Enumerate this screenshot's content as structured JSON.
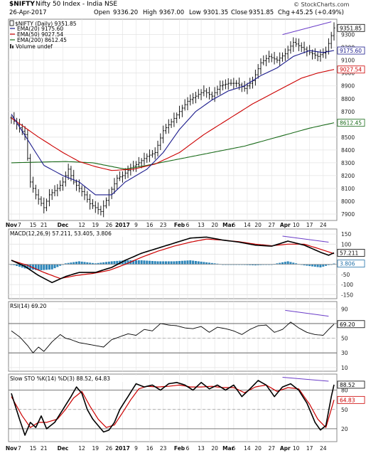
{
  "header": {
    "symbol": "$NIFTY",
    "name": "Nifty 50 Index - India NSE",
    "date": "26-Apr-2017",
    "watermark": "© StockCharts.com",
    "open_label": "Open",
    "open": "9336.20",
    "high_label": "High",
    "high": "9367.00",
    "low_label": "Low",
    "low": "9301.35",
    "close_label": "Close",
    "close": "9351.85",
    "chg_label": "Chg",
    "chg": "+45.25 (+0.49%)"
  },
  "legend": {
    "price": "$NIFTY (Daily) 9351.85",
    "ema20": "EMA(20) 9175.60",
    "ema50": "EMA(50) 9027.54",
    "ema200": "EMA(200) 8612.45",
    "volume": "Volume undef"
  },
  "x_axis": {
    "labels": [
      {
        "text": "Nov",
        "i": 0,
        "bold": true
      },
      {
        "text": "7",
        "i": 3
      },
      {
        "text": "15",
        "i": 8
      },
      {
        "text": "21",
        "i": 12
      },
      {
        "text": "Dec",
        "i": 19,
        "bold": true
      },
      {
        "text": "12",
        "i": 26
      },
      {
        "text": "19",
        "i": 31
      },
      {
        "text": "26",
        "i": 36
      },
      {
        "text": "2017",
        "i": 41,
        "bold": true
      },
      {
        "text": "9",
        "i": 46
      },
      {
        "text": "16",
        "i": 51
      },
      {
        "text": "23",
        "i": 56
      },
      {
        "text": "Feb",
        "i": 62,
        "bold": true
      },
      {
        "text": "6",
        "i": 65
      },
      {
        "text": "13",
        "i": 70
      },
      {
        "text": "20",
        "i": 75
      },
      {
        "text": "Mar",
        "i": 80,
        "bold": true
      },
      {
        "text": "6",
        "i": 82
      },
      {
        "text": "14",
        "i": 87
      },
      {
        "text": "20",
        "i": 91
      },
      {
        "text": "27",
        "i": 96
      },
      {
        "text": "Apr",
        "i": 101,
        "bold": true
      },
      {
        "text": "10",
        "i": 105
      },
      {
        "text": "17",
        "i": 110
      },
      {
        "text": "24",
        "i": 115
      }
    ]
  },
  "panels": {
    "price": {
      "ticks": [
        "9300",
        "9200",
        "9100",
        "9000",
        "8900",
        "8800",
        "8700",
        "8600",
        "8500",
        "8400",
        "8300",
        "8200",
        "8100",
        "8000",
        "7900"
      ],
      "tick_values": [
        9300,
        9200,
        9100,
        9000,
        8900,
        8800,
        8700,
        8600,
        8500,
        8400,
        8300,
        8200,
        8100,
        8000,
        7900
      ],
      "ymin": 7850,
      "ymax": 9420,
      "tags": [
        {
          "text": "9351.85",
          "value": 9351.85,
          "color": "#000000"
        },
        {
          "text": "9175.60",
          "value": 9175.6,
          "color": "#1a1a8c"
        },
        {
          "text": "9027.54",
          "value": 9027.54,
          "color": "#cc0000"
        },
        {
          "text": "8612.45",
          "value": 8612.45,
          "color": "#1a6b1a"
        }
      ]
    },
    "macd": {
      "title": "MACD(12,26,9) 57.211, 53.405, 3.806",
      "ticks": [
        "150",
        "100",
        "50",
        "0",
        "-50",
        "-100",
        "-150"
      ],
      "tick_values": [
        150,
        100,
        50,
        0,
        -50,
        -100,
        -150
      ],
      "ymin": -170,
      "ymax": 175,
      "tags": [
        {
          "text": "57.211",
          "value": 57.211,
          "color": "#000000"
        },
        {
          "text": "3.806",
          "value": 3.806,
          "color": "#1f6fa8"
        }
      ]
    },
    "rsi": {
      "title": "RSI(14) 69.20",
      "ticks": [
        "90",
        "70",
        "50",
        "30",
        "10"
      ],
      "tick_values": [
        90,
        70,
        50,
        30,
        10
      ],
      "ymin": 5,
      "ymax": 100,
      "tags": [
        {
          "text": "69.20",
          "value": 69.2,
          "color": "#000000"
        }
      ]
    },
    "sto": {
      "title": "Slow STO %K(14) %D(3) 88.52, 64.83",
      "ticks": [
        "80",
        "50",
        "20"
      ],
      "tick_values": [
        80,
        50,
        20
      ],
      "ymin": 0,
      "ymax": 105,
      "tags": [
        {
          "text": "88.52",
          "value": 88.52,
          "color": "#000000"
        },
        {
          "text": "64.83",
          "value": 64.83,
          "color": "#cc0000"
        }
      ]
    }
  },
  "colors": {
    "price": "#000000",
    "ema20": "#1a1a8c",
    "ema50": "#cc0000",
    "ema200": "#1a6b1a",
    "macd_line": "#000000",
    "macd_signal": "#cc0000",
    "histogram": "#2e86b9",
    "rsi_fill": "#3a7a3a",
    "sto_k": "#000000",
    "sto_d": "#cc0000",
    "divergence": "#6a3cc8"
  },
  "chart_data": {
    "type": "line",
    "title": "$NIFTY Nifty 50 Index - India NSE",
    "n_points": 120,
    "price_anchors": [
      [
        0,
        8650
      ],
      [
        2,
        8600
      ],
      [
        5,
        8520
      ],
      [
        7,
        8150
      ],
      [
        9,
        8050
      ],
      [
        12,
        7950
      ],
      [
        14,
        8050
      ],
      [
        17,
        8100
      ],
      [
        19,
        8150
      ],
      [
        21,
        8250
      ],
      [
        23,
        8150
      ],
      [
        25,
        8100
      ],
      [
        27,
        8050
      ],
      [
        29,
        7980
      ],
      [
        31,
        7950
      ],
      [
        33,
        7920
      ],
      [
        36,
        8050
      ],
      [
        39,
        8180
      ],
      [
        41,
        8200
      ],
      [
        44,
        8260
      ],
      [
        47,
        8300
      ],
      [
        50,
        8350
      ],
      [
        53,
        8380
      ],
      [
        56,
        8550
      ],
      [
        59,
        8620
      ],
      [
        62,
        8700
      ],
      [
        65,
        8780
      ],
      [
        68,
        8820
      ],
      [
        71,
        8860
      ],
      [
        74,
        8820
      ],
      [
        77,
        8900
      ],
      [
        80,
        8920
      ],
      [
        83,
        8920
      ],
      [
        86,
        8880
      ],
      [
        89,
        8940
      ],
      [
        92,
        9080
      ],
      [
        95,
        9130
      ],
      [
        98,
        9100
      ],
      [
        101,
        9150
      ],
      [
        104,
        9240
      ],
      [
        107,
        9200
      ],
      [
        110,
        9160
      ],
      [
        113,
        9130
      ],
      [
        116,
        9170
      ],
      [
        119,
        9352
      ]
    ],
    "price_ohlc_spread": 45,
    "ema20_anchors": [
      [
        0,
        8680
      ],
      [
        6,
        8480
      ],
      [
        12,
        8280
      ],
      [
        19,
        8200
      ],
      [
        25,
        8150
      ],
      [
        31,
        8050
      ],
      [
        37,
        8050
      ],
      [
        42,
        8150
      ],
      [
        50,
        8250
      ],
      [
        56,
        8380
      ],
      [
        62,
        8560
      ],
      [
        68,
        8700
      ],
      [
        74,
        8790
      ],
      [
        80,
        8860
      ],
      [
        86,
        8900
      ],
      [
        92,
        8980
      ],
      [
        98,
        9040
      ],
      [
        104,
        9130
      ],
      [
        110,
        9175
      ],
      [
        115,
        9160
      ],
      [
        119,
        9176
      ]
    ],
    "ema50_anchors": [
      [
        0,
        8650
      ],
      [
        10,
        8500
      ],
      [
        19,
        8380
      ],
      [
        25,
        8310
      ],
      [
        31,
        8270
      ],
      [
        37,
        8240
      ],
      [
        45,
        8250
      ],
      [
        53,
        8290
      ],
      [
        62,
        8380
      ],
      [
        71,
        8520
      ],
      [
        80,
        8640
      ],
      [
        89,
        8760
      ],
      [
        98,
        8860
      ],
      [
        107,
        8960
      ],
      [
        113,
        9000
      ],
      [
        119,
        9028
      ]
    ],
    "ema200_anchors": [
      [
        0,
        8300
      ],
      [
        20,
        8310
      ],
      [
        30,
        8300
      ],
      [
        42,
        8250
      ],
      [
        50,
        8280
      ],
      [
        62,
        8330
      ],
      [
        74,
        8380
      ],
      [
        86,
        8430
      ],
      [
        98,
        8500
      ],
      [
        110,
        8570
      ],
      [
        119,
        8612
      ]
    ],
    "macd_anchors": [
      [
        0,
        20
      ],
      [
        5,
        -10
      ],
      [
        10,
        -55
      ],
      [
        15,
        -90
      ],
      [
        20,
        -60
      ],
      [
        25,
        -40
      ],
      [
        31,
        -40
      ],
      [
        37,
        -15
      ],
      [
        42,
        20
      ],
      [
        48,
        55
      ],
      [
        54,
        80
      ],
      [
        60,
        105
      ],
      [
        66,
        130
      ],
      [
        72,
        135
      ],
      [
        78,
        120
      ],
      [
        84,
        110
      ],
      [
        90,
        95
      ],
      [
        96,
        90
      ],
      [
        102,
        115
      ],
      [
        108,
        95
      ],
      [
        114,
        60
      ],
      [
        117,
        45
      ],
      [
        119,
        57
      ]
    ],
    "signal_anchors": [
      [
        0,
        20
      ],
      [
        6,
        -5
      ],
      [
        12,
        -40
      ],
      [
        18,
        -70
      ],
      [
        24,
        -55
      ],
      [
        30,
        -45
      ],
      [
        36,
        -30
      ],
      [
        42,
        0
      ],
      [
        48,
        35
      ],
      [
        54,
        65
      ],
      [
        60,
        90
      ],
      [
        66,
        110
      ],
      [
        72,
        125
      ],
      [
        78,
        120
      ],
      [
        84,
        112
      ],
      [
        90,
        100
      ],
      [
        96,
        92
      ],
      [
        102,
        100
      ],
      [
        108,
        100
      ],
      [
        114,
        75
      ],
      [
        119,
        53
      ]
    ],
    "histogram_anchors": [
      [
        0,
        0
      ],
      [
        5,
        -20
      ],
      [
        10,
        -30
      ],
      [
        15,
        -25
      ],
      [
        20,
        5
      ],
      [
        25,
        15
      ],
      [
        31,
        5
      ],
      [
        37,
        15
      ],
      [
        42,
        20
      ],
      [
        48,
        20
      ],
      [
        54,
        15
      ],
      [
        60,
        15
      ],
      [
        66,
        20
      ],
      [
        72,
        10
      ],
      [
        78,
        0
      ],
      [
        84,
        -2
      ],
      [
        90,
        -5
      ],
      [
        96,
        0
      ],
      [
        102,
        15
      ],
      [
        108,
        -5
      ],
      [
        114,
        -15
      ],
      [
        119,
        4
      ]
    ],
    "rsi_anchors": [
      [
        0,
        60
      ],
      [
        3,
        52
      ],
      [
        6,
        40
      ],
      [
        8,
        30
      ],
      [
        10,
        38
      ],
      [
        12,
        32
      ],
      [
        15,
        45
      ],
      [
        18,
        55
      ],
      [
        20,
        50
      ],
      [
        22,
        48
      ],
      [
        25,
        44
      ],
      [
        28,
        42
      ],
      [
        31,
        40
      ],
      [
        34,
        38
      ],
      [
        37,
        48
      ],
      [
        40,
        52
      ],
      [
        43,
        56
      ],
      [
        46,
        54
      ],
      [
        49,
        62
      ],
      [
        52,
        60
      ],
      [
        55,
        70
      ],
      [
        58,
        68
      ],
      [
        61,
        67
      ],
      [
        64,
        64
      ],
      [
        67,
        63
      ],
      [
        70,
        66
      ],
      [
        73,
        58
      ],
      [
        76,
        65
      ],
      [
        79,
        63
      ],
      [
        82,
        60
      ],
      [
        85,
        55
      ],
      [
        88,
        62
      ],
      [
        91,
        67
      ],
      [
        94,
        68
      ],
      [
        97,
        58
      ],
      [
        100,
        62
      ],
      [
        103,
        72
      ],
      [
        106,
        64
      ],
      [
        109,
        58
      ],
      [
        112,
        55
      ],
      [
        115,
        54
      ],
      [
        117,
        62
      ],
      [
        119,
        69.2
      ]
    ],
    "sto_k_anchors": [
      [
        0,
        75
      ],
      [
        3,
        35
      ],
      [
        5,
        10
      ],
      [
        7,
        30
      ],
      [
        9,
        22
      ],
      [
        11,
        40
      ],
      [
        13,
        20
      ],
      [
        16,
        30
      ],
      [
        19,
        50
      ],
      [
        22,
        70
      ],
      [
        24,
        85
      ],
      [
        26,
        75
      ],
      [
        28,
        50
      ],
      [
        30,
        35
      ],
      [
        32,
        25
      ],
      [
        34,
        15
      ],
      [
        36,
        18
      ],
      [
        38,
        30
      ],
      [
        40,
        50
      ],
      [
        43,
        70
      ],
      [
        46,
        90
      ],
      [
        49,
        85
      ],
      [
        52,
        88
      ],
      [
        55,
        80
      ],
      [
        58,
        90
      ],
      [
        61,
        92
      ],
      [
        64,
        88
      ],
      [
        67,
        80
      ],
      [
        70,
        92
      ],
      [
        73,
        82
      ],
      [
        76,
        88
      ],
      [
        79,
        80
      ],
      [
        82,
        88
      ],
      [
        85,
        70
      ],
      [
        88,
        82
      ],
      [
        91,
        95
      ],
      [
        94,
        88
      ],
      [
        97,
        70
      ],
      [
        100,
        85
      ],
      [
        103,
        90
      ],
      [
        106,
        80
      ],
      [
        109,
        60
      ],
      [
        112,
        30
      ],
      [
        114,
        18
      ],
      [
        116,
        25
      ],
      [
        118,
        70
      ],
      [
        119,
        88.52
      ]
    ],
    "sto_d_anchors": [
      [
        0,
        70
      ],
      [
        4,
        40
      ],
      [
        7,
        22
      ],
      [
        10,
        30
      ],
      [
        13,
        30
      ],
      [
        17,
        35
      ],
      [
        20,
        50
      ],
      [
        23,
        68
      ],
      [
        26,
        78
      ],
      [
        29,
        55
      ],
      [
        32,
        35
      ],
      [
        35,
        22
      ],
      [
        38,
        26
      ],
      [
        41,
        45
      ],
      [
        44,
        65
      ],
      [
        47,
        82
      ],
      [
        50,
        86
      ],
      [
        54,
        85
      ],
      [
        58,
        86
      ],
      [
        62,
        88
      ],
      [
        66,
        85
      ],
      [
        70,
        85
      ],
      [
        74,
        86
      ],
      [
        78,
        84
      ],
      [
        82,
        84
      ],
      [
        86,
        76
      ],
      [
        90,
        85
      ],
      [
        94,
        88
      ],
      [
        98,
        78
      ],
      [
        102,
        84
      ],
      [
        106,
        82
      ],
      [
        110,
        58
      ],
      [
        113,
        35
      ],
      [
        116,
        22
      ],
      [
        119,
        64.83
      ]
    ]
  }
}
